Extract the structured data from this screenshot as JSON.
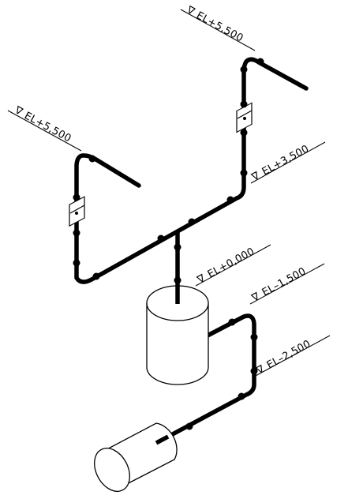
{
  "colors": {
    "line": "#000000",
    "background": "#ffffff"
  },
  "elevations": {
    "top_right": "EL+5,500",
    "top_left": "EL+5,500",
    "mid_right": "EL+3,500",
    "ground": "EL+0,000",
    "minus_1500": "EL–1,500",
    "minus_2500": "EL–2,500"
  },
  "symbols": {
    "elevation_marker": "∇"
  }
}
